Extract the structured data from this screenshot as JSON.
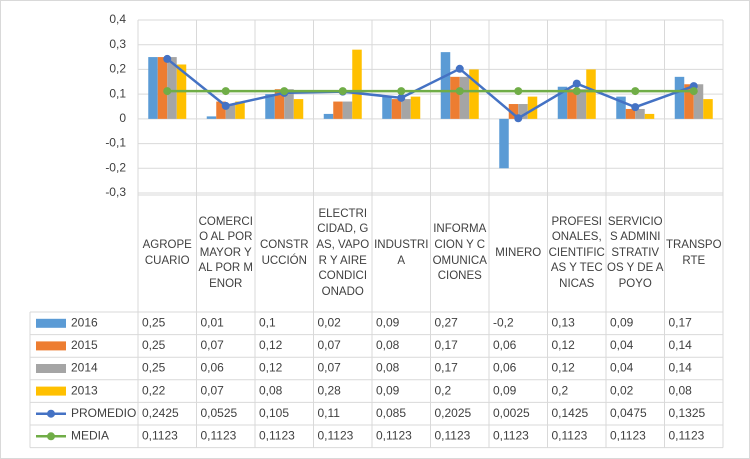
{
  "chart_data": {
    "type": "bar",
    "categories": [
      "AGROPECUARIO",
      "COMERCIO AL POR MAYOR Y AL POR MENOR",
      "CONSTRUCCIÓN",
      "ELECTRICIDAD, GAS, VAPOR Y AIRE CONDICIONADO",
      "INDUSTRIA",
      "INFORMACION Y COMUNICACIONES",
      "MINERO",
      "PROFESIONALES, CIENTIFICAS Y TECNICAS",
      "SERVICIOS ADMINISTRATIVOS Y DE APOYO",
      "TRANSPORTE"
    ],
    "series": [
      {
        "name": "2016",
        "type": "bar",
        "color": "#5b9bd5",
        "values": [
          0.25,
          0.01,
          0.1,
          0.02,
          0.09,
          0.27,
          -0.2,
          0.13,
          0.09,
          0.17
        ],
        "value_labels": [
          "0,25",
          "0,01",
          "0,1",
          "0,02",
          "0,09",
          "0,27",
          "-0,2",
          "0,13",
          "0,09",
          "0,17"
        ]
      },
      {
        "name": "2015",
        "type": "bar",
        "color": "#ed7d31",
        "values": [
          0.25,
          0.07,
          0.12,
          0.07,
          0.08,
          0.17,
          0.06,
          0.12,
          0.04,
          0.14
        ],
        "value_labels": [
          "0,25",
          "0,07",
          "0,12",
          "0,07",
          "0,08",
          "0,17",
          "0,06",
          "0,12",
          "0,04",
          "0,14"
        ]
      },
      {
        "name": "2014",
        "type": "bar",
        "color": "#a5a5a5",
        "values": [
          0.25,
          0.06,
          0.12,
          0.07,
          0.08,
          0.17,
          0.06,
          0.12,
          0.04,
          0.14
        ],
        "value_labels": [
          "0,25",
          "0,06",
          "0,12",
          "0,07",
          "0,08",
          "0,17",
          "0,06",
          "0,12",
          "0,04",
          "0,14"
        ]
      },
      {
        "name": "2013",
        "type": "bar",
        "color": "#ffc000",
        "values": [
          0.22,
          0.07,
          0.08,
          0.28,
          0.09,
          0.2,
          0.09,
          0.2,
          0.02,
          0.08
        ],
        "value_labels": [
          "0,22",
          "0,07",
          "0,08",
          "0,28",
          "0,09",
          "0,2",
          "0,09",
          "0,2",
          "0,02",
          "0,08"
        ]
      },
      {
        "name": "PROMEDIO",
        "type": "line",
        "color": "#4472c4",
        "values": [
          0.2425,
          0.0525,
          0.105,
          0.11,
          0.085,
          0.2025,
          0.0025,
          0.1425,
          0.0475,
          0.1325
        ],
        "value_labels": [
          "0,2425",
          "0,0525",
          "0,105",
          "0,11",
          "0,085",
          "0,2025",
          "0,0025",
          "0,1425",
          "0,0475",
          "0,1325"
        ]
      },
      {
        "name": "MEDIA",
        "type": "line",
        "color": "#70ad47",
        "values": [
          0.1123,
          0.1123,
          0.1123,
          0.1123,
          0.1123,
          0.1123,
          0.1123,
          0.1123,
          0.1123,
          0.1123
        ],
        "value_labels": [
          "0,1123",
          "0,1123",
          "0,1123",
          "0,1123",
          "0,1123",
          "0,1123",
          "0,1123",
          "0,1123",
          "0,1123",
          "0,1123"
        ]
      }
    ],
    "ylim": [
      -0.3,
      0.4
    ],
    "yticks": [
      {
        "value": -0.3,
        "label": "-0,3"
      },
      {
        "value": -0.2,
        "label": "-0,2"
      },
      {
        "value": -0.1,
        "label": "-0,1"
      },
      0,
      {
        "value": 0.1,
        "label": "0,1"
      },
      {
        "value": 0.2,
        "label": "0,2"
      },
      {
        "value": 0.3,
        "label": "0,3"
      },
      {
        "value": 0.4,
        "label": "0,4"
      }
    ],
    "grid": true
  }
}
